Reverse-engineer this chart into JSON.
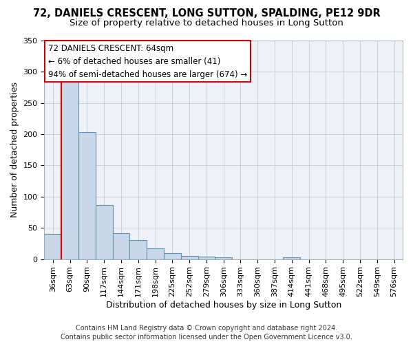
{
  "title": "72, DANIELS CRESCENT, LONG SUTTON, SPALDING, PE12 9DR",
  "subtitle": "Size of property relative to detached houses in Long Sutton",
  "xlabel": "Distribution of detached houses by size in Long Sutton",
  "ylabel": "Number of detached properties",
  "footer_line1": "Contains HM Land Registry data © Crown copyright and database right 2024.",
  "footer_line2": "Contains public sector information licensed under the Open Government Licence v3.0.",
  "categories": [
    "36sqm",
    "63sqm",
    "90sqm",
    "117sqm",
    "144sqm",
    "171sqm",
    "198sqm",
    "225sqm",
    "252sqm",
    "279sqm",
    "306sqm",
    "333sqm",
    "360sqm",
    "387sqm",
    "414sqm",
    "441sqm",
    "468sqm",
    "495sqm",
    "522sqm",
    "549sqm",
    "576sqm"
  ],
  "values": [
    40,
    290,
    203,
    87,
    41,
    30,
    17,
    9,
    5,
    4,
    3,
    0,
    0,
    0,
    3,
    0,
    0,
    0,
    0,
    0,
    0
  ],
  "bar_color": "#c8d8e8",
  "bar_edge_color": "#6090b0",
  "ylim": [
    0,
    350
  ],
  "yticks": [
    0,
    50,
    100,
    150,
    200,
    250,
    300,
    350
  ],
  "annotation_line1": "72 DANIELS CRESCENT: 64sqm",
  "annotation_line2": "← 6% of detached houses are smaller (41)",
  "annotation_line3": "94% of semi-detached houses are larger (674) →",
  "vline_color": "#cc0000",
  "background_color": "#eef2f8",
  "grid_color": "#c0ccd8",
  "title_fontsize": 10.5,
  "subtitle_fontsize": 9.5,
  "axis_label_fontsize": 9,
  "tick_fontsize": 8,
  "annotation_fontsize": 8.5,
  "footer_fontsize": 7
}
